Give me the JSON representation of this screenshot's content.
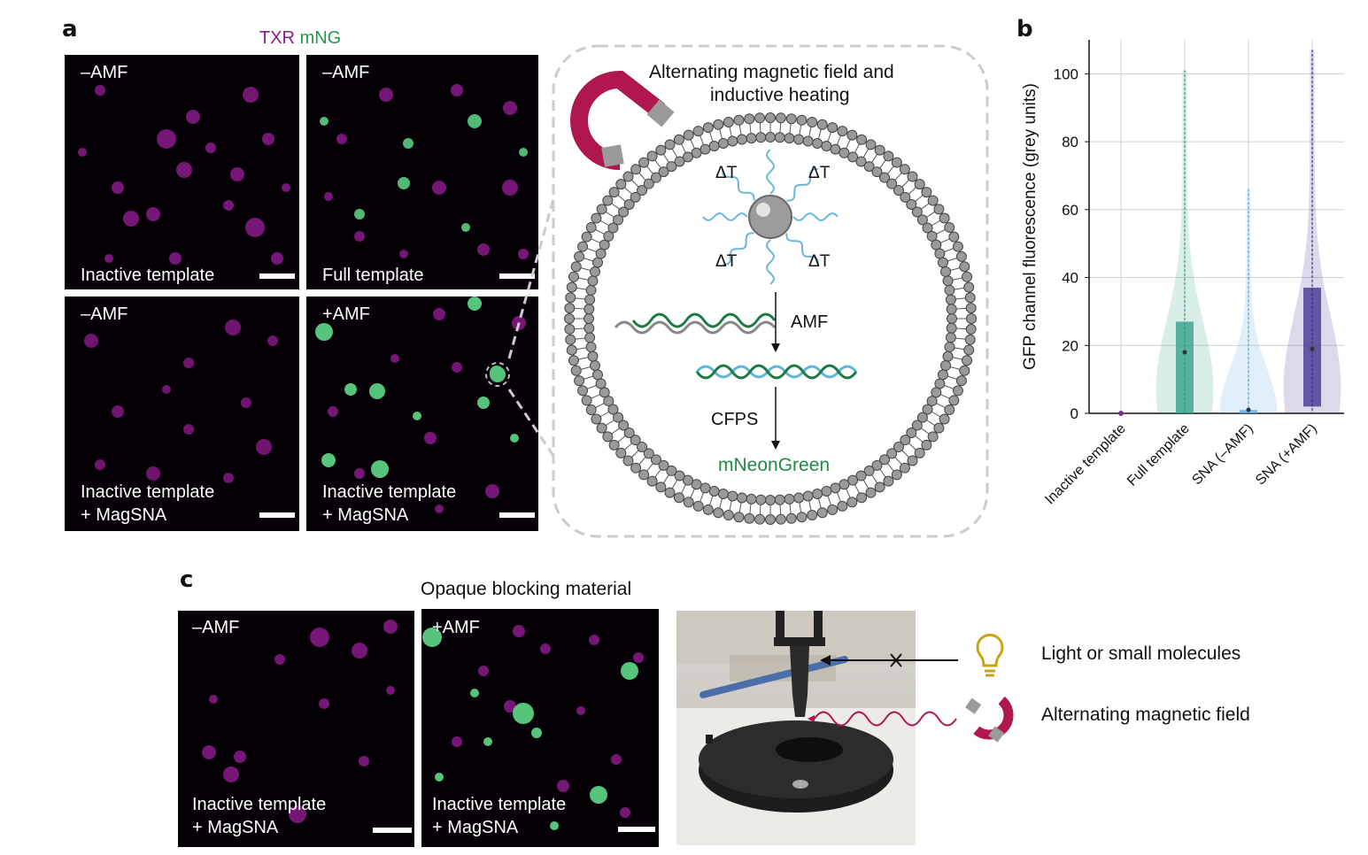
{
  "panel_a": {
    "letter": "a",
    "channel_txr": "TXR",
    "channel_mng": "mNG",
    "images": [
      {
        "top": "–AMF",
        "bottom": [
          "Inactive template"
        ]
      },
      {
        "top": "–AMF",
        "bottom": [
          "Full template"
        ]
      },
      {
        "top": "–AMF",
        "bottom": [
          "Inactive template",
          "+ MagSNA"
        ]
      },
      {
        "top": "+AMF",
        "bottom": [
          "Inactive template",
          "+ MagSNA"
        ]
      }
    ],
    "schematic": {
      "title_line1": "Alternating magnetic field and",
      "title_line2": "inductive heating",
      "delta_t": "ΔT",
      "step1": "AMF",
      "step2": "CFPS",
      "product": "mNeonGreen"
    }
  },
  "panel_b": {
    "letter": "b"
  },
  "panel_c": {
    "letter": "c",
    "title": "Opaque blocking material",
    "images": [
      {
        "top": "–AMF",
        "bottom": [
          "Inactive template",
          "+ MagSNA"
        ]
      },
      {
        "top": "+AMF",
        "bottom": [
          "Inactive template",
          "+ MagSNA"
        ]
      }
    ],
    "legend_light": "Light or small molecules",
    "legend_amf": "Alternating magnetic field"
  },
  "colors": {
    "magenta": "#8a1a8a",
    "green": "#5fd98a",
    "teal": "#2a9d84",
    "blue": "#5ba6e6",
    "purple": "#3d2a8c",
    "magnet": "#b0174f"
  },
  "chart_data": {
    "type": "violin",
    "title": "",
    "xlabel": "",
    "ylabel": "GFP channel fluorescence (grey units)",
    "ylim": [
      0,
      110
    ],
    "yticks": [
      0,
      20,
      40,
      60,
      80,
      100
    ],
    "grid": true,
    "categories": [
      "Inactive template",
      "Full template",
      "SNA (–AMF)",
      "SNA (+AMF)"
    ],
    "colors": [
      "#7b2d8e",
      "#2a9d84",
      "#5ba6e6",
      "#3d2a8c"
    ],
    "median": [
      0,
      18,
      1,
      19
    ],
    "q1": [
      0,
      0,
      0,
      2
    ],
    "q3": [
      0,
      27,
      1,
      37
    ],
    "max": [
      0,
      101,
      66,
      107
    ]
  }
}
